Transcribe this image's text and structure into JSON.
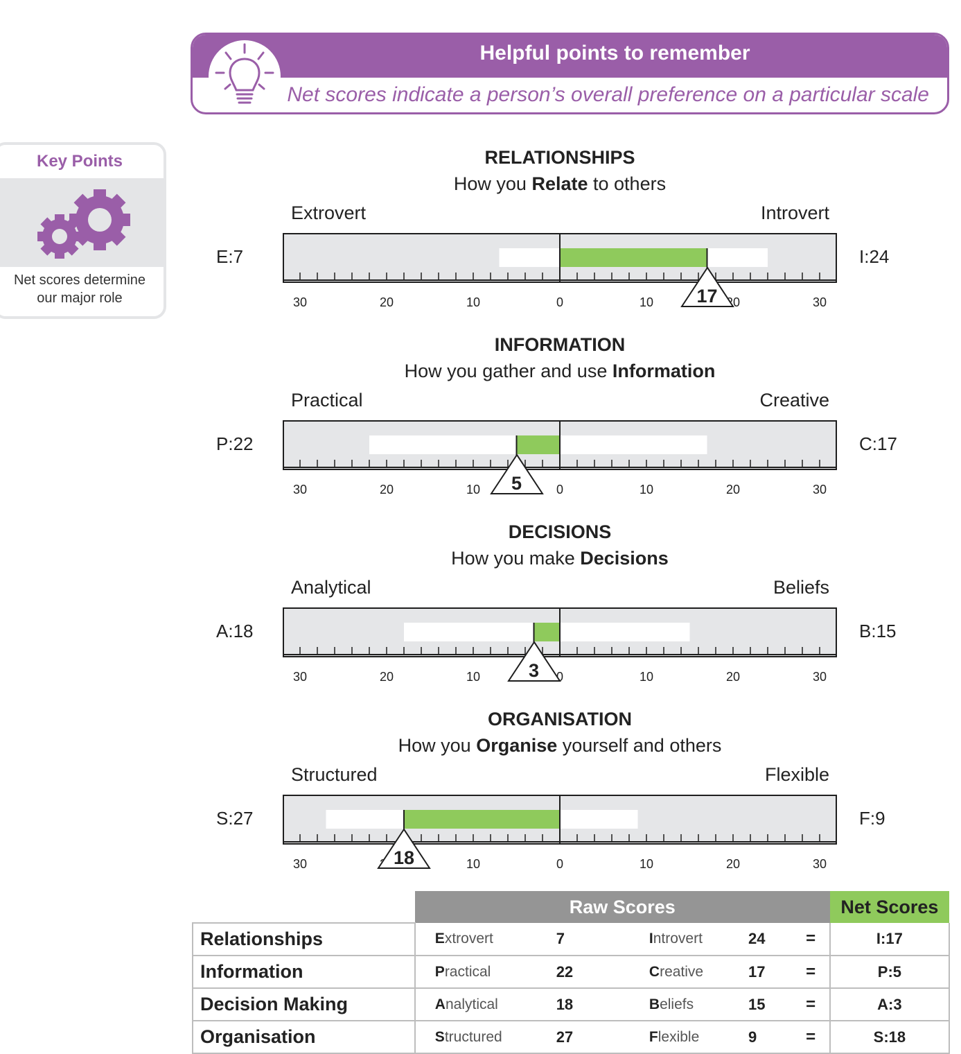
{
  "banner": {
    "title": "Helpful points to remember",
    "subtitle": "Net scores indicate a person’s overall preference on a particular scale",
    "icon": "lightbulb-icon"
  },
  "key_points": {
    "title": "Key Points",
    "icon": "gears-icon",
    "text_line1": "Net scores determine",
    "text_line2": "our major role"
  },
  "colors": {
    "accent": "#9a5ea8",
    "net_bar": "#8fca5c",
    "track": "#e5e6e8",
    "header_grey": "#959595"
  },
  "scales": [
    {
      "title": "RELATIONSHIPS",
      "sub_pre": "How you ",
      "sub_bold": "Relate",
      "sub_post": " to others",
      "left_label": "Extrovert",
      "right_label": "Introvert",
      "left_raw": "E:7",
      "right_raw": "I:24",
      "left_value": 7,
      "right_value": 24,
      "net_side": "right",
      "net_value": 17,
      "net_label": "17"
    },
    {
      "title": "INFORMATION",
      "sub_pre": "How you gather and use ",
      "sub_bold": "Information",
      "sub_post": "",
      "left_label": "Practical",
      "right_label": "Creative",
      "left_raw": "P:22",
      "right_raw": "C:17",
      "left_value": 22,
      "right_value": 17,
      "net_side": "left",
      "net_value": 5,
      "net_label": "5"
    },
    {
      "title": "DECISIONS",
      "sub_pre": "How you make ",
      "sub_bold": "Decisions",
      "sub_post": "",
      "left_label": "Analytical",
      "right_label": "Beliefs",
      "left_raw": "A:18",
      "right_raw": "B:15",
      "left_value": 18,
      "right_value": 15,
      "net_side": "left",
      "net_value": 3,
      "net_label": "3"
    },
    {
      "title": "ORGANISATION",
      "sub_pre": "How you ",
      "sub_bold": "Organise",
      "sub_post": " yourself and others",
      "left_label": "Structured",
      "right_label": "Flexible",
      "left_raw": "S:27",
      "right_raw": "F:9",
      "left_value": 27,
      "right_value": 9,
      "net_side": "left",
      "net_value": 18,
      "net_label": "18"
    }
  ],
  "tick_labels": [
    "30",
    "20",
    "10",
    "0",
    "10",
    "20",
    "30"
  ],
  "table": {
    "header_raw": "Raw Scores",
    "header_net": "Net Scores",
    "equals": "=",
    "rows": [
      {
        "category": "Relationships",
        "l_initial": "E",
        "l_rest": "xtrovert",
        "l_score": "7",
        "r_initial": "I",
        "r_rest": "ntrovert",
        "r_score": "24",
        "net": "I:17"
      },
      {
        "category": "Information",
        "l_initial": "P",
        "l_rest": "ractical",
        "l_score": "22",
        "r_initial": "C",
        "r_rest": "reative",
        "r_score": "17",
        "net": "P:5"
      },
      {
        "category": "Decision Making",
        "l_initial": "A",
        "l_rest": "nalytical",
        "l_score": "18",
        "r_initial": "B",
        "r_rest": "eliefs",
        "r_score": "15",
        "net": "A:3"
      },
      {
        "category": "Organisation",
        "l_initial": "S",
        "l_rest": "tructured",
        "l_score": "27",
        "r_initial": "F",
        "r_rest": "lexible",
        "r_score": "9",
        "net": "S:18"
      }
    ]
  }
}
